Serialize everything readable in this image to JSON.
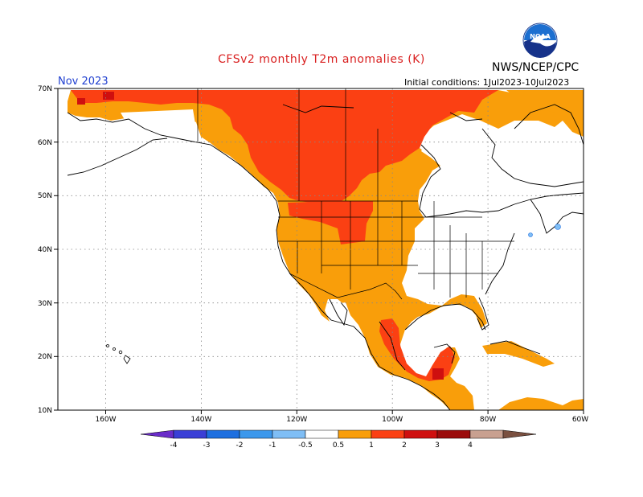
{
  "header": {
    "title": "CFSv2 monthly T2m anomalies (K)",
    "period": "Nov 2023",
    "agency": "NWS/NCEP/CPC",
    "initial_conditions": "Initial conditions: 1Jul2023-10Jul2023",
    "logo_text": "NOAA"
  },
  "axes": {
    "lat_labels": [
      "70N",
      "60N",
      "50N",
      "40N",
      "30N",
      "20N",
      "10N"
    ],
    "lon_labels": [
      "160W",
      "140W",
      "120W",
      "100W",
      "80W",
      "60W"
    ]
  },
  "legend": {
    "labels": [
      "-4",
      "-3",
      "-2",
      "-1",
      "-0.5",
      "0.5",
      "1",
      "2",
      "3",
      "4"
    ],
    "colors": [
      "#6a2cc9",
      "#3a3fd6",
      "#1d6fe0",
      "#3c98ec",
      "#7fbef5",
      "#ffffff",
      "#f99e0a",
      "#fb4013",
      "#cf0f0f",
      "#9b0b0b",
      "#c8a090",
      "#7a5040"
    ]
  },
  "colors": {
    "warm_05_1": "#f99e0a",
    "warm_1_2": "#fb4013",
    "warm_2_3": "#cf0f0f",
    "cool_05_1": "#7fbef5"
  }
}
